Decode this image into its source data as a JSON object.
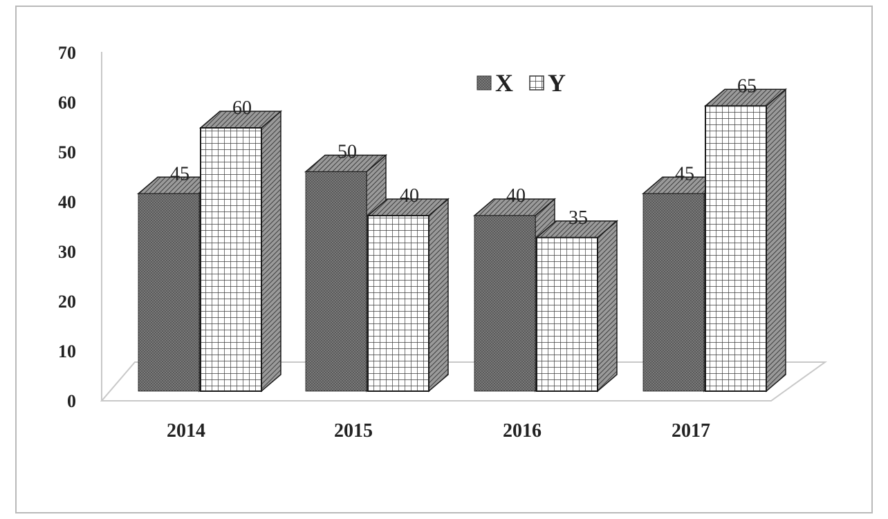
{
  "chart_data": {
    "type": "bar",
    "categories": [
      "2014",
      "2015",
      "2016",
      "2017"
    ],
    "series": [
      {
        "name": "X",
        "values": [
          45,
          50,
          40,
          45
        ],
        "pattern": "dots"
      },
      {
        "name": "Y",
        "values": [
          60,
          40,
          35,
          65
        ],
        "pattern": "grid"
      }
    ],
    "ylim": [
      0,
      70
    ],
    "yticks": [
      0,
      10,
      20,
      30,
      40,
      50,
      60,
      70
    ],
    "legend": "top-right",
    "style": "3d-columns",
    "colors": {
      "x_fill": "#6f6f6f",
      "y_fill": "#ffffff",
      "y_grid": "#3a3a3a",
      "edge": "#1a1a1a"
    }
  }
}
